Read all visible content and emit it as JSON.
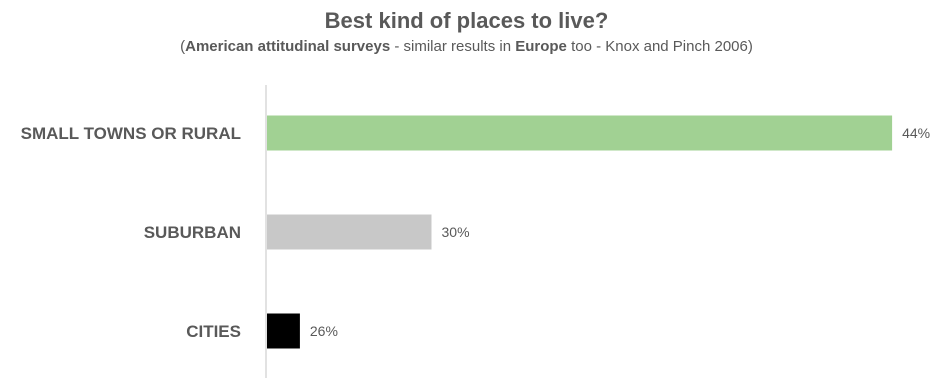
{
  "chart_data": {
    "type": "bar",
    "orientation": "horizontal",
    "title": "Best kind of places to live?",
    "subtitle": {
      "open": "(",
      "bold1": "American attitudinal surveys",
      "mid": " - similar results in ",
      "bold2": "Europe",
      "tail": " too - Knox and Pinch 2006)"
    },
    "categories": [
      "SMALL TOWNS OR RURAL",
      "SUBURBAN",
      "CITIES"
    ],
    "values": [
      44,
      30,
      26
    ],
    "value_labels": [
      "44%",
      "30%",
      "26%"
    ],
    "unit": "%",
    "colors": [
      "#a1d193",
      "#c8c8c8",
      "#000000"
    ],
    "axis_color": "#d9d9d9",
    "grid": false,
    "legend": "none"
  }
}
